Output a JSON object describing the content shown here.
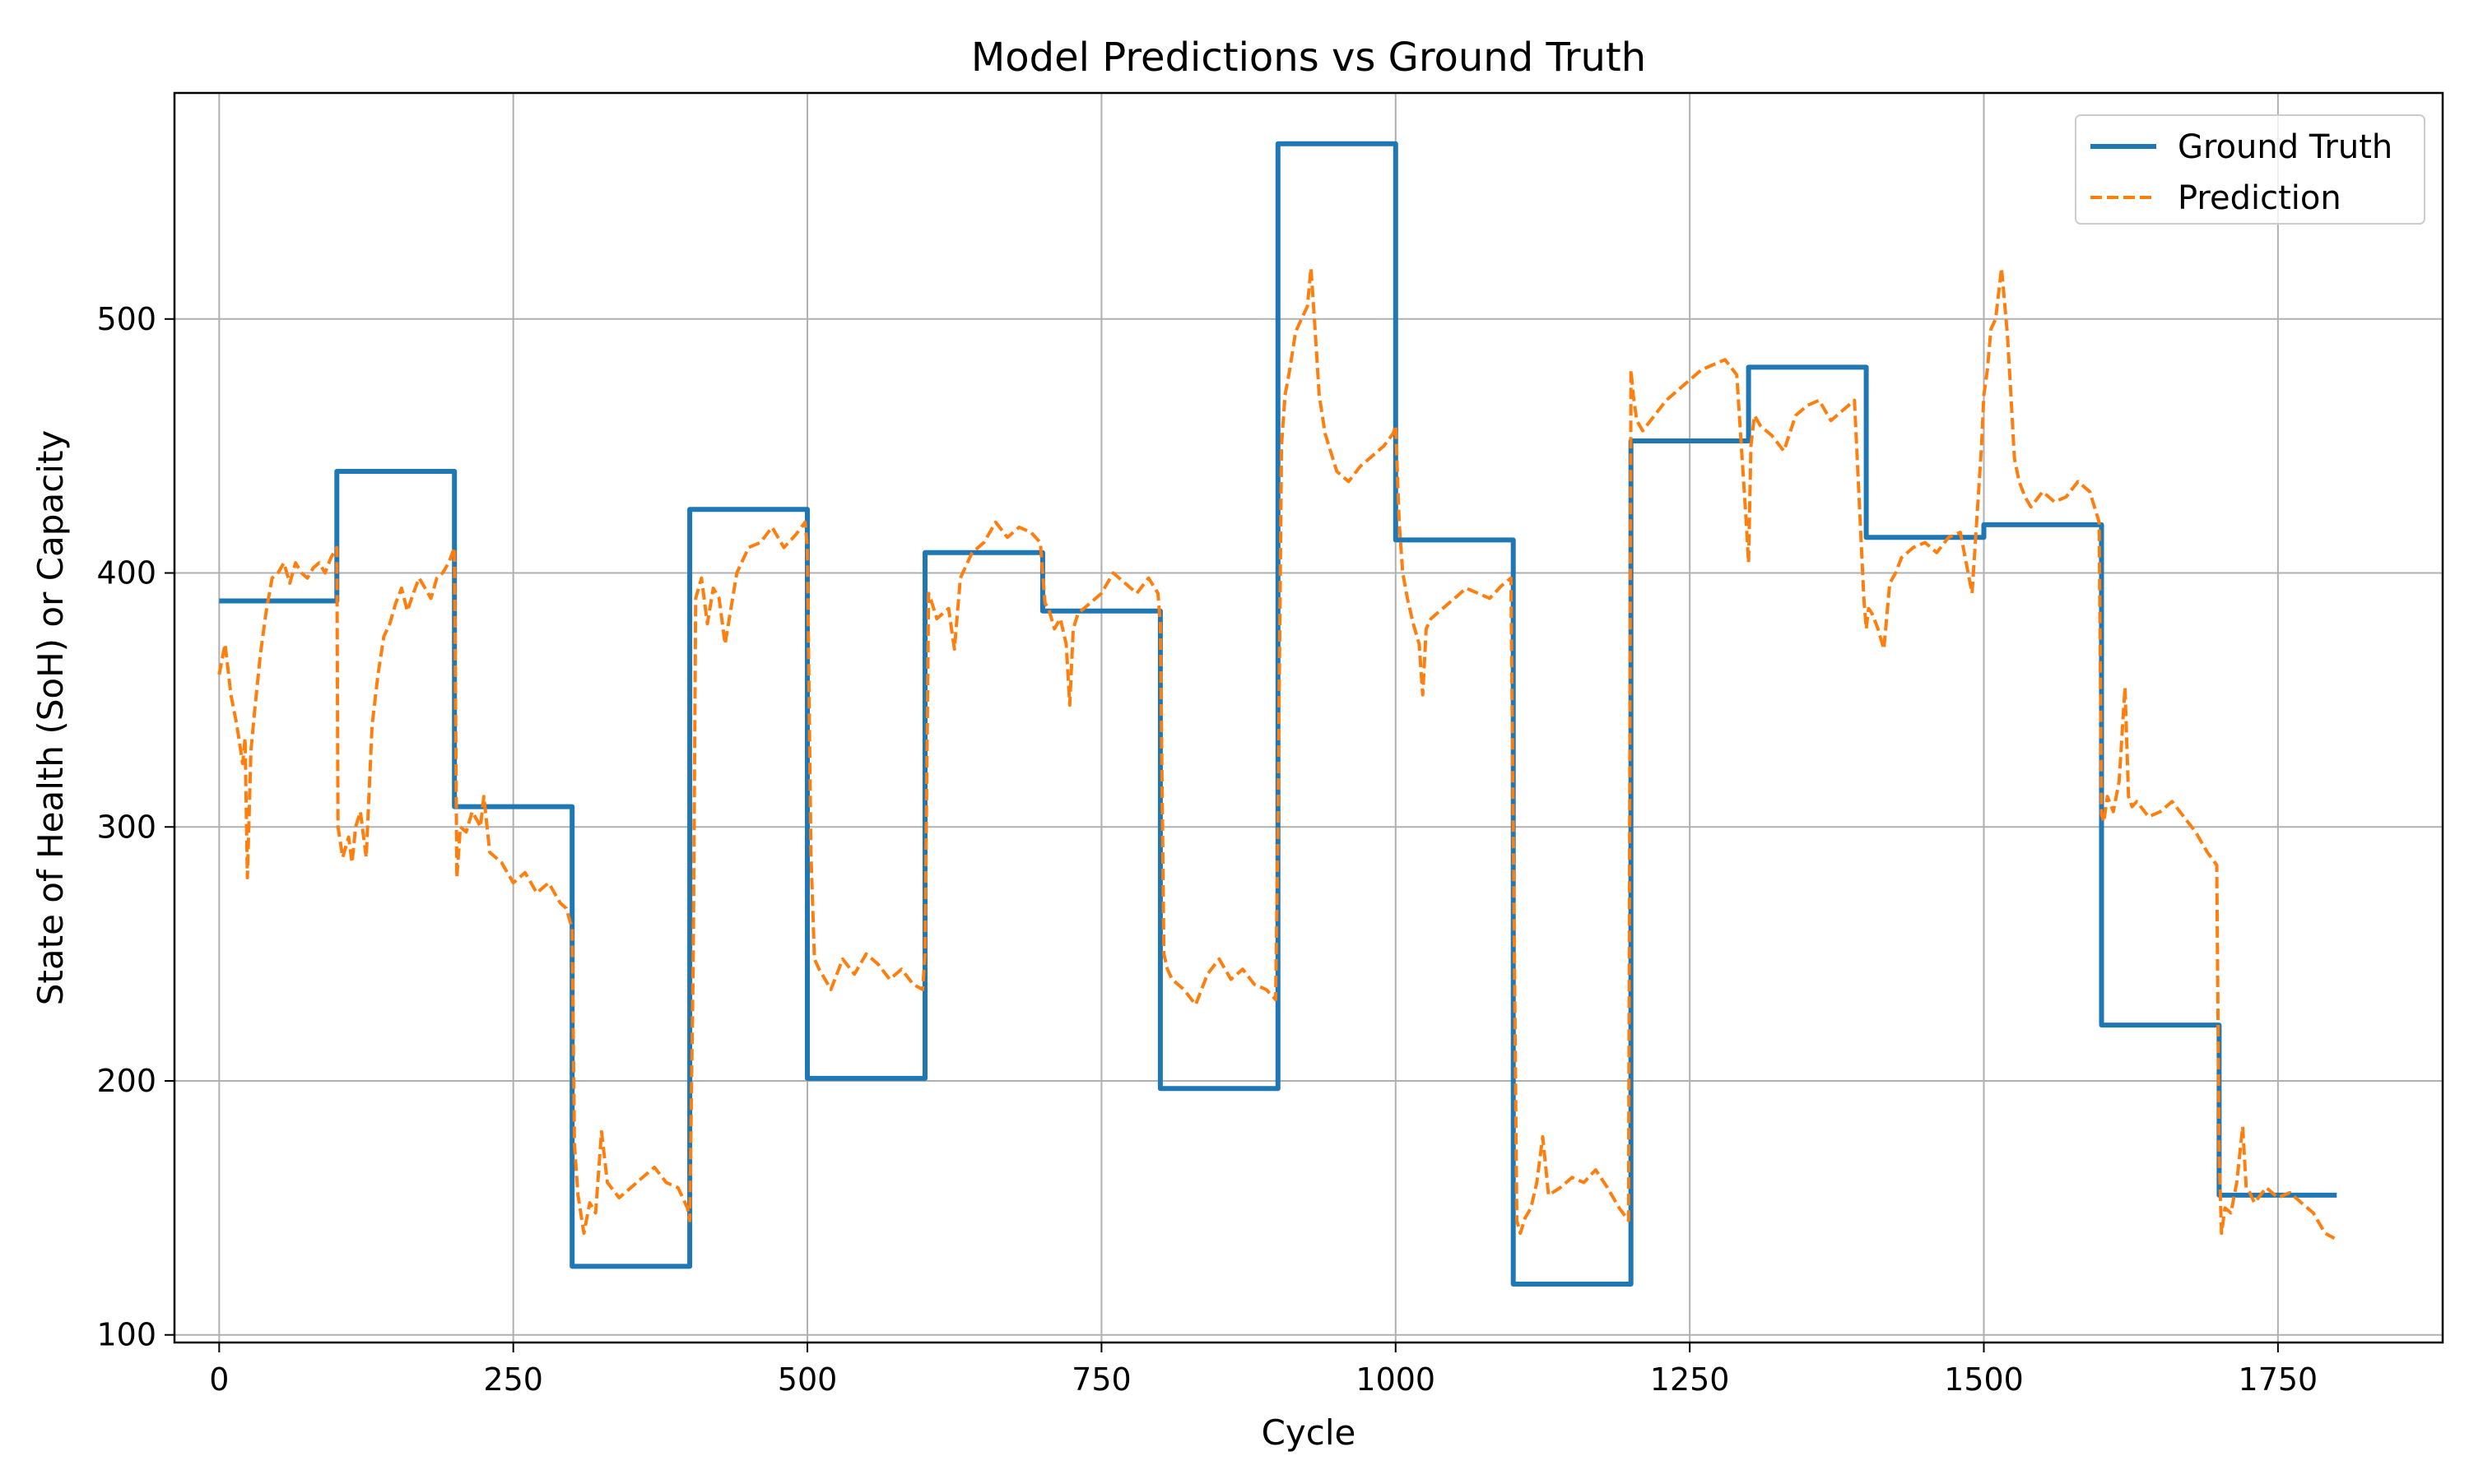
{
  "chart_data": {
    "type": "line",
    "title": "Model Predictions vs Ground Truth",
    "xlabel": "Cycle",
    "ylabel": "State of Health (SoH) or Capacity",
    "xlim": [
      -38,
      1890
    ],
    "ylim": [
      97,
      589
    ],
    "xticks": [
      0,
      250,
      500,
      750,
      1000,
      1250,
      1500,
      1750
    ],
    "yticks": [
      100,
      200,
      300,
      400,
      500
    ],
    "grid": true,
    "legend_position": "top-right",
    "colors": {
      "ground_truth": "#1f77b4",
      "prediction": "#ff7f0e",
      "grid": "#b0b0b0"
    },
    "series": [
      {
        "name": "Ground Truth",
        "style": "solid",
        "x": [
          0,
          100,
          100,
          200,
          200,
          300,
          300,
          400,
          400,
          500,
          500,
          600,
          600,
          700,
          700,
          800,
          800,
          900,
          900,
          1000,
          1000,
          1100,
          1100,
          1200,
          1200,
          1300,
          1300,
          1400,
          1400,
          1500,
          1500,
          1600,
          1600,
          1700,
          1700,
          1800
        ],
        "values": [
          389,
          389,
          440,
          440,
          308,
          308,
          127,
          127,
          425,
          425,
          201,
          201,
          408,
          408,
          385,
          385,
          197,
          197,
          569,
          569,
          413,
          413,
          120,
          120,
          452,
          452,
          481,
          481,
          414,
          414,
          419,
          419,
          222,
          222,
          155,
          155
        ]
      },
      {
        "name": "Prediction",
        "style": "dashed",
        "x": [
          0,
          5,
          10,
          15,
          20,
          22,
          24,
          27,
          30,
          35,
          40,
          45,
          50,
          55,
          60,
          65,
          70,
          75,
          80,
          85,
          90,
          95,
          100,
          101,
          105,
          110,
          113,
          116,
          120,
          125,
          130,
          135,
          140,
          145,
          150,
          155,
          160,
          165,
          170,
          175,
          180,
          185,
          190,
          195,
          200,
          202,
          205,
          210,
          215,
          220,
          222,
          225,
          230,
          240,
          250,
          260,
          270,
          280,
          290,
          295,
          300,
          302,
          305,
          310,
          315,
          320,
          325,
          330,
          340,
          350,
          360,
          370,
          380,
          390,
          398,
          400,
          403,
          405,
          410,
          415,
          420,
          425,
          430,
          440,
          450,
          460,
          470,
          480,
          490,
          498,
          500,
          503,
          506,
          510,
          515,
          520,
          530,
          540,
          550,
          560,
          570,
          580,
          590,
          598,
          600,
          603,
          606,
          610,
          620,
          625,
          630,
          640,
          650,
          660,
          670,
          680,
          690,
          698,
          700,
          702,
          705,
          710,
          715,
          720,
          723,
          726,
          730,
          740,
          750,
          760,
          770,
          780,
          790,
          798,
          800,
          803,
          806,
          810,
          820,
          830,
          840,
          850,
          860,
          870,
          880,
          890,
          898,
          900,
          903,
          906,
          910,
          915,
          920,
          925,
          928,
          931,
          935,
          940,
          950,
          960,
          970,
          980,
          990,
          998,
          1000,
          1003,
          1006,
          1010,
          1015,
          1020,
          1023,
          1026,
          1030,
          1040,
          1050,
          1060,
          1070,
          1080,
          1090,
          1098,
          1100,
          1103,
          1106,
          1110,
          1115,
          1120,
          1125,
          1130,
          1140,
          1150,
          1160,
          1170,
          1180,
          1190,
          1198,
          1200,
          1202,
          1205,
          1210,
          1220,
          1230,
          1240,
          1250,
          1260,
          1270,
          1280,
          1290,
          1298,
          1300,
          1302,
          1305,
          1310,
          1320,
          1330,
          1340,
          1350,
          1360,
          1370,
          1380,
          1390,
          1398,
          1400,
          1402,
          1405,
          1410,
          1415,
          1420,
          1425,
          1430,
          1440,
          1450,
          1460,
          1470,
          1480,
          1490,
          1498,
          1500,
          1503,
          1506,
          1510,
          1515,
          1520,
          1523,
          1526,
          1530,
          1535,
          1540,
          1550,
          1560,
          1570,
          1580,
          1590,
          1598,
          1600,
          1602,
          1605,
          1610,
          1615,
          1620,
          1623,
          1626,
          1630,
          1640,
          1650,
          1660,
          1670,
          1680,
          1690,
          1698,
          1700,
          1702,
          1705,
          1710,
          1715,
          1720,
          1723,
          1726,
          1730,
          1740,
          1750,
          1760,
          1770,
          1780,
          1790,
          1798
        ],
        "values": [
          360,
          372,
          352,
          340,
          325,
          335,
          280,
          330,
          345,
          368,
          385,
          398,
          400,
          404,
          396,
          404,
          400,
          398,
          402,
          404,
          400,
          406,
          410,
          300,
          288,
          296,
          286,
          300,
          306,
          288,
          340,
          360,
          375,
          380,
          388,
          394,
          385,
          392,
          398,
          394,
          390,
          398,
          400,
          404,
          410,
          280,
          300,
          298,
          306,
          302,
          300,
          312,
          290,
          286,
          278,
          282,
          274,
          278,
          270,
          268,
          260,
          175,
          155,
          140,
          152,
          148,
          180,
          160,
          154,
          158,
          162,
          166,
          160,
          158,
          150,
          145,
          250,
          390,
          398,
          380,
          394,
          390,
          372,
          400,
          410,
          412,
          418,
          410,
          415,
          420,
          410,
          290,
          248,
          244,
          240,
          236,
          248,
          242,
          250,
          246,
          240,
          244,
          238,
          236,
          250,
          392,
          388,
          382,
          386,
          370,
          398,
          408,
          412,
          420,
          414,
          418,
          416,
          412,
          400,
          388,
          386,
          378,
          382,
          372,
          348,
          378,
          384,
          388,
          392,
          400,
          396,
          392,
          398,
          392,
          380,
          250,
          244,
          240,
          236,
          230,
          242,
          248,
          240,
          244,
          238,
          236,
          232,
          300,
          450,
          470,
          480,
          495,
          500,
          505,
          520,
          500,
          470,
          455,
          440,
          436,
          442,
          446,
          450,
          455,
          458,
          420,
          400,
          390,
          380,
          372,
          352,
          378,
          382,
          386,
          390,
          394,
          392,
          390,
          395,
          398,
          300,
          145,
          140,
          146,
          150,
          160,
          178,
          155,
          158,
          162,
          160,
          165,
          158,
          150,
          145,
          480,
          470,
          460,
          456,
          462,
          468,
          472,
          476,
          480,
          482,
          484,
          478,
          420,
          404,
          450,
          462,
          458,
          454,
          448,
          462,
          466,
          468,
          460,
          464,
          468,
          390,
          378,
          386,
          384,
          378,
          370,
          396,
          400,
          406,
          410,
          412,
          408,
          414,
          416,
          392,
          450,
          470,
          480,
          496,
          500,
          520,
          494,
          470,
          445,
          436,
          430,
          426,
          432,
          428,
          430,
          436,
          432,
          420,
          305,
          302,
          312,
          306,
          318,
          355,
          312,
          308,
          310,
          304,
          306,
          310,
          304,
          298,
          290,
          285,
          170,
          140,
          150,
          148,
          160,
          182,
          158,
          156,
          152,
          158,
          154,
          156,
          152,
          148,
          140,
          138
        ]
      }
    ]
  }
}
